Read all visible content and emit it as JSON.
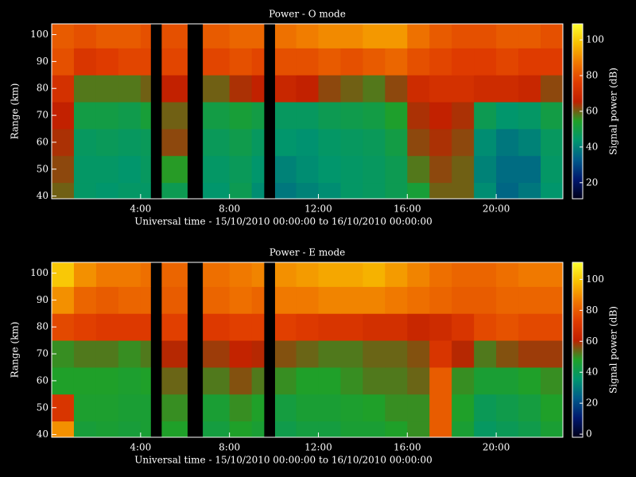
{
  "chart_data": [
    {
      "type": "heatmap",
      "title": "Power - O mode",
      "xlabel": "Universal time - 15/10/2010 00:00:00 to 16/10/2010 00:00:00",
      "ylabel": "Range (km)",
      "colorbar_label": "Signal power (dB)",
      "x_bins": [
        0,
        1,
        2,
        3,
        4,
        4.45,
        4.95,
        6.1,
        6.8,
        8,
        9,
        9.55,
        10.05,
        11,
        12,
        13,
        14,
        15,
        16,
        17,
        18,
        19,
        20,
        21,
        22,
        23
      ],
      "y_bins": [
        39,
        45,
        55,
        65,
        75,
        85,
        95,
        104
      ],
      "values": [
        [
          60,
          45,
          44,
          45,
          45,
          null,
          48,
          null,
          44,
          48,
          42,
          null,
          38,
          40,
          42,
          45,
          46,
          48,
          52,
          60,
          60,
          42,
          35,
          38,
          44
        ],
        [
          62,
          45,
          45,
          44,
          46,
          null,
          55,
          null,
          45,
          47,
          44,
          null,
          40,
          42,
          44,
          45,
          46,
          48,
          58,
          62,
          60,
          40,
          36,
          36,
          45
        ],
        [
          64,
          46,
          47,
          46,
          47,
          null,
          62,
          null,
          47,
          49,
          46,
          null,
          44,
          43,
          45,
          46,
          47,
          50,
          62,
          64,
          62,
          42,
          38,
          40,
          46
        ],
        [
          66,
          50,
          50,
          49,
          52,
          null,
          60,
          null,
          50,
          52,
          50,
          null,
          46,
          46,
          48,
          49,
          50,
          54,
          64,
          66,
          64,
          48,
          44,
          45,
          50
        ],
        [
          72,
          58,
          58,
          58,
          60,
          null,
          66,
          null,
          60,
          64,
          66,
          null,
          68,
          66,
          62,
          60,
          58,
          62,
          70,
          72,
          72,
          70,
          70,
          68,
          62
        ],
        [
          80,
          74,
          76,
          78,
          78,
          null,
          78,
          null,
          78,
          80,
          78,
          null,
          80,
          80,
          82,
          80,
          82,
          84,
          80,
          78,
          76,
          76,
          78,
          76,
          76
        ],
        [
          82,
          80,
          82,
          82,
          80,
          null,
          80,
          null,
          82,
          84,
          84,
          null,
          86,
          88,
          90,
          90,
          92,
          92,
          86,
          82,
          80,
          80,
          82,
          82,
          80
        ]
      ],
      "xlim": [
        0,
        23
      ],
      "ylim": [
        39,
        104
      ],
      "xticks": [
        {
          "value": 4,
          "label": "4:00"
        },
        {
          "value": 8,
          "label": "8:00"
        },
        {
          "value": 12,
          "label": "12:00"
        },
        {
          "value": 16,
          "label": "16:00"
        },
        {
          "value": 20,
          "label": "20:00"
        }
      ],
      "yticks": [
        40,
        50,
        60,
        70,
        80,
        90,
        100
      ],
      "clim": [
        11,
        109
      ],
      "cticks": [
        20,
        40,
        60,
        80,
        100
      ],
      "colormap": [
        "#000018",
        "#00186e",
        "#005a8a",
        "#00966e",
        "#20a028",
        "#c02000",
        "#e03c00",
        "#f07800",
        "#f8c000",
        "#ffff30"
      ]
    },
    {
      "type": "heatmap",
      "title": "Power - E mode",
      "xlabel": "Universal time - 15/10/2010 00:00:00 to 16/10/2010 00:00:00",
      "ylabel": "Range (km)",
      "colorbar_label": "Signal power (dB)",
      "x_bins": [
        0,
        1,
        2,
        3,
        4,
        4.45,
        4.95,
        6.1,
        6.8,
        8,
        9,
        9.55,
        10.05,
        11,
        12,
        13,
        14,
        15,
        16,
        17,
        18,
        19,
        20,
        21,
        22,
        23
      ],
      "y_bins": [
        39,
        45,
        55,
        65,
        75,
        85,
        95,
        104
      ],
      "values": [
        [
          90,
          45,
          46,
          45,
          46,
          null,
          48,
          null,
          44,
          48,
          46,
          null,
          42,
          44,
          44,
          46,
          46,
          48,
          50,
          80,
          46,
          38,
          40,
          42,
          46
        ],
        [
          70,
          47,
          47,
          46,
          46,
          null,
          50,
          null,
          46,
          50,
          48,
          null,
          44,
          46,
          46,
          47,
          48,
          50,
          50,
          80,
          48,
          40,
          42,
          44,
          48
        ],
        [
          48,
          48,
          48,
          47,
          48,
          null,
          54,
          null,
          52,
          56,
          52,
          null,
          50,
          48,
          48,
          50,
          52,
          52,
          54,
          80,
          50,
          46,
          46,
          48,
          50
        ],
        [
          50,
          52,
          52,
          50,
          52,
          null,
          60,
          null,
          58,
          62,
          60,
          null,
          56,
          54,
          52,
          52,
          54,
          54,
          56,
          70,
          60,
          52,
          56,
          58,
          58
        ],
        [
          76,
          74,
          72,
          72,
          72,
          null,
          74,
          null,
          72,
          74,
          74,
          null,
          74,
          72,
          70,
          70,
          68,
          68,
          64,
          66,
          70,
          76,
          78,
          76,
          76
        ],
        [
          90,
          82,
          80,
          82,
          82,
          null,
          80,
          null,
          82,
          84,
          82,
          null,
          86,
          86,
          88,
          88,
          88,
          86,
          84,
          82,
          80,
          80,
          82,
          82,
          82
        ],
        [
          100,
          90,
          86,
          86,
          84,
          null,
          82,
          null,
          84,
          86,
          88,
          null,
          90,
          92,
          94,
          94,
          96,
          92,
          88,
          84,
          82,
          82,
          84,
          86,
          86
        ]
      ],
      "xlim": [
        0,
        23
      ],
      "ylim": [
        39,
        104
      ],
      "xticks": [
        {
          "value": 4,
          "label": "4:00"
        },
        {
          "value": 8,
          "label": "8:00"
        },
        {
          "value": 12,
          "label": "12:00"
        },
        {
          "value": 16,
          "label": "16:00"
        },
        {
          "value": 20,
          "label": "20:00"
        }
      ],
      "yticks": [
        40,
        50,
        60,
        70,
        80,
        90,
        100
      ],
      "clim": [
        -2,
        111
      ],
      "cticks": [
        0,
        20,
        40,
        60,
        80,
        100
      ],
      "colormap": [
        "#000018",
        "#00186e",
        "#005a8a",
        "#00966e",
        "#20a028",
        "#c02000",
        "#e03c00",
        "#f07800",
        "#f8c000",
        "#ffff30"
      ]
    }
  ]
}
